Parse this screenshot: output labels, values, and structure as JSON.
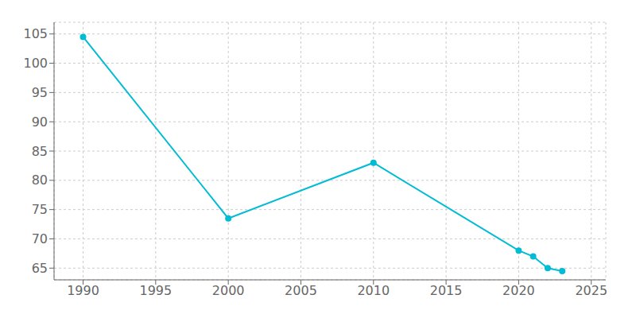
{
  "chart_data": {
    "type": "line",
    "x": [
      1990,
      2000,
      2010,
      2020,
      2021,
      2022,
      2023
    ],
    "values": [
      104.5,
      73.5,
      83,
      68,
      67,
      65,
      64.5
    ],
    "color": "#00BCD4",
    "marker": "circle",
    "xlim": [
      1988,
      2026
    ],
    "ylim": [
      63,
      107
    ],
    "xticks": [
      1990,
      1995,
      2000,
      2005,
      2010,
      2015,
      2020,
      2025
    ],
    "yticks": [
      65,
      70,
      75,
      80,
      85,
      90,
      95,
      100,
      105
    ],
    "grid": true
  }
}
